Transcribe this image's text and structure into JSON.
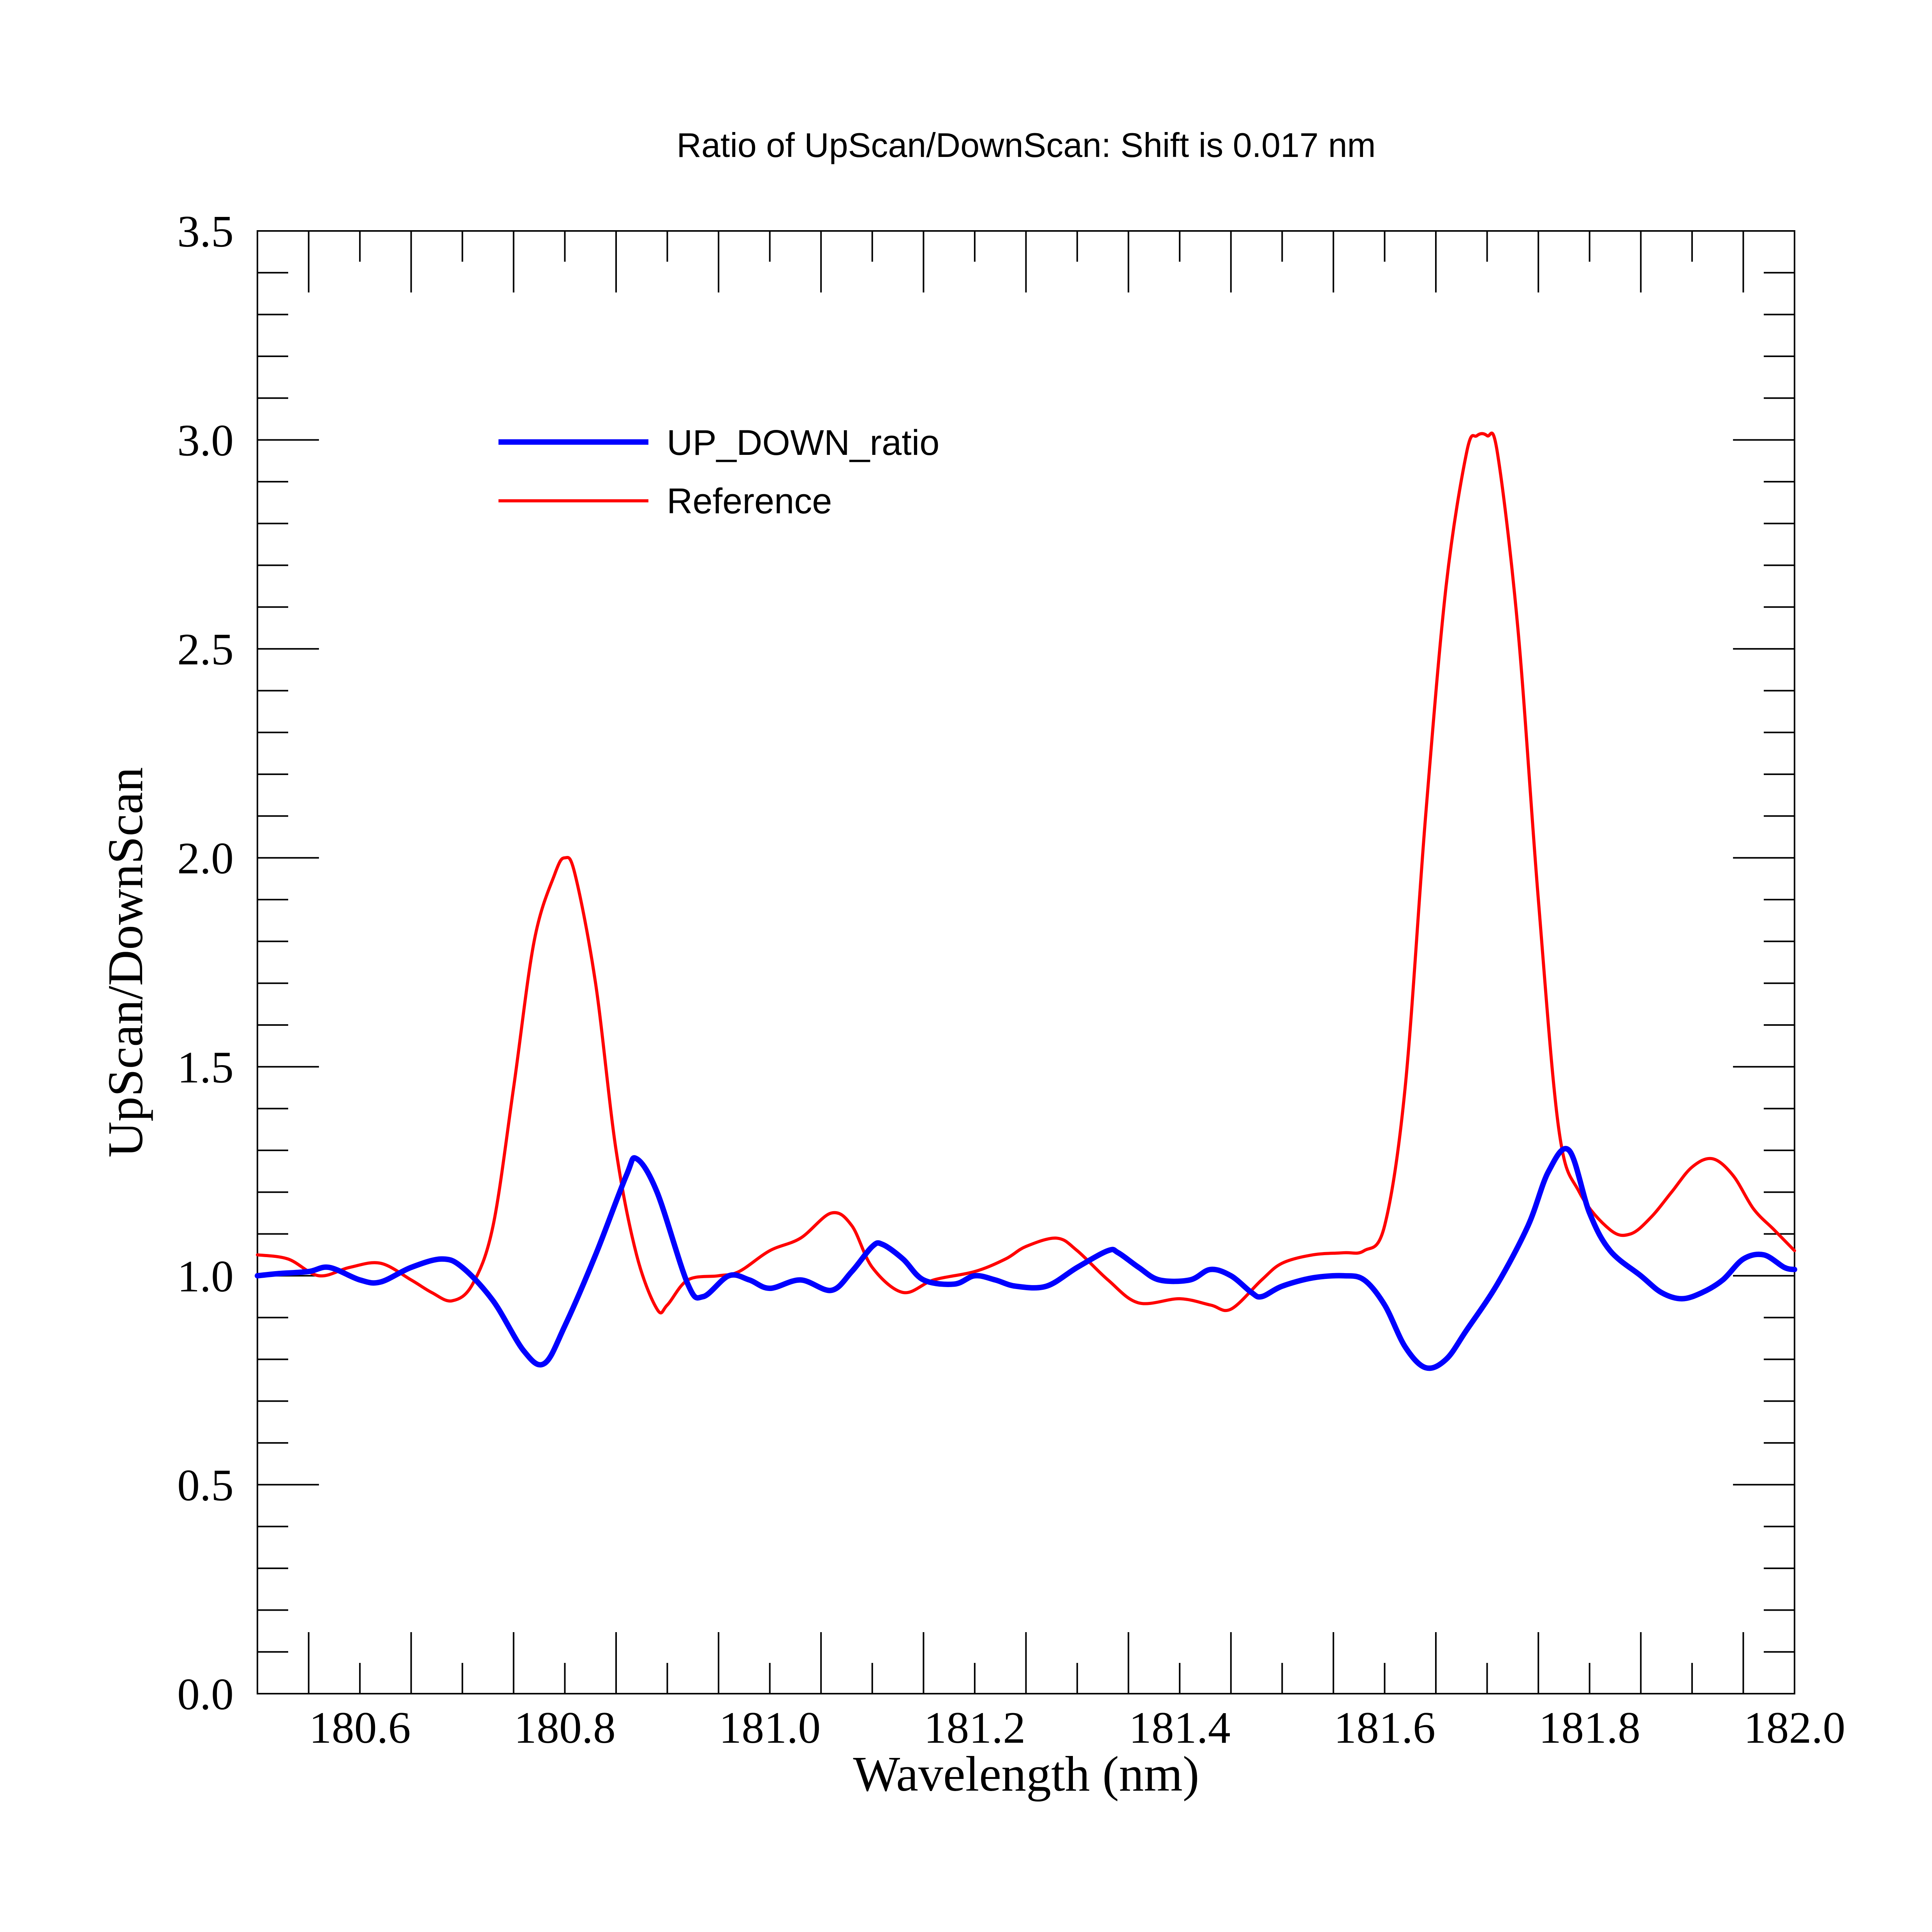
{
  "chart_data": {
    "type": "line",
    "title": "Ratio of UpScan/DownScan: Shift is 0.017 nm",
    "xlabel": "Wavelength (nm)",
    "ylabel": "UpScan/DownScan",
    "xlim": [
      180.5,
      182.0
    ],
    "ylim": [
      0.0,
      3.5
    ],
    "x_ticks": [
      "180.6",
      "180.8",
      "181.0",
      "181.2",
      "181.4",
      "181.6",
      "181.8",
      "182.0"
    ],
    "y_ticks": [
      "0.0",
      "0.5",
      "1.0",
      "1.5",
      "2.0",
      "2.5",
      "3.0",
      "3.5"
    ],
    "grid": false,
    "legend_position": "upper-left",
    "series": [
      {
        "name": "UP_DOWN_ratio",
        "color": "#0000ff",
        "x": [
          180.5,
          180.52,
          180.55,
          180.57,
          180.6,
          180.62,
          180.65,
          180.68,
          180.7,
          180.73,
          180.76,
          180.78,
          180.8,
          180.83,
          180.86,
          180.87,
          180.89,
          180.92,
          180.935,
          180.96,
          180.98,
          181.0,
          181.03,
          181.06,
          181.08,
          181.1,
          181.11,
          181.13,
          181.15,
          181.18,
          181.2,
          181.22,
          181.24,
          181.27,
          181.3,
          181.33,
          181.34,
          181.36,
          181.38,
          181.41,
          181.43,
          181.45,
          181.47,
          181.48,
          181.5,
          181.53,
          181.56,
          181.58,
          181.6,
          181.62,
          181.64,
          181.66,
          181.68,
          181.71,
          181.74,
          181.76,
          181.78,
          181.8,
          181.82,
          181.85,
          181.87,
          181.89,
          181.91,
          181.93,
          181.95,
          181.97,
          181.99,
          182.0
        ],
        "y": [
          1.0,
          1.005,
          1.01,
          1.02,
          0.99,
          0.985,
          1.02,
          1.04,
          1.02,
          0.94,
          0.82,
          0.79,
          0.88,
          1.05,
          1.24,
          1.28,
          1.2,
          0.98,
          0.95,
          1.0,
          0.99,
          0.97,
          0.99,
          0.965,
          1.01,
          1.07,
          1.075,
          1.04,
          0.99,
          0.98,
          1.0,
          0.99,
          0.975,
          0.975,
          1.02,
          1.06,
          1.055,
          1.02,
          0.99,
          0.99,
          1.015,
          1.0,
          0.96,
          0.95,
          0.975,
          0.995,
          1.0,
          0.99,
          0.93,
          0.83,
          0.78,
          0.8,
          0.87,
          0.98,
          1.12,
          1.25,
          1.3,
          1.15,
          1.06,
          1.0,
          0.96,
          0.945,
          0.96,
          0.99,
          1.04,
          1.05,
          1.02,
          1.015
        ]
      },
      {
        "name": "Reference",
        "color": "#ff0000",
        "x": [
          180.5,
          180.53,
          180.56,
          180.59,
          180.62,
          180.65,
          180.67,
          180.69,
          180.71,
          180.73,
          180.75,
          180.77,
          180.79,
          180.8,
          180.81,
          180.83,
          180.85,
          180.87,
          180.89,
          180.9,
          180.92,
          180.95,
          180.97,
          181.0,
          181.03,
          181.06,
          181.08,
          181.1,
          181.13,
          181.16,
          181.2,
          181.23,
          181.25,
          181.28,
          181.3,
          181.33,
          181.36,
          181.4,
          181.43,
          181.45,
          181.48,
          181.5,
          181.53,
          181.56,
          181.58,
          181.6,
          181.62,
          181.64,
          181.66,
          181.68,
          181.69,
          181.7,
          181.71,
          181.73,
          181.75,
          181.77,
          181.79,
          181.82,
          181.84,
          181.86,
          181.88,
          181.9,
          181.92,
          181.94,
          181.96,
          181.98,
          182.0
        ],
        "y": [
          1.05,
          1.04,
          1.0,
          1.02,
          1.03,
          0.99,
          0.96,
          0.94,
          0.98,
          1.12,
          1.45,
          1.8,
          1.96,
          2.0,
          1.96,
          1.7,
          1.3,
          1.05,
          0.92,
          0.93,
          0.99,
          1.0,
          1.01,
          1.06,
          1.09,
          1.15,
          1.12,
          1.02,
          0.96,
          0.99,
          1.01,
          1.04,
          1.07,
          1.09,
          1.06,
          0.99,
          0.935,
          0.945,
          0.93,
          0.92,
          0.99,
          1.03,
          1.05,
          1.055,
          1.06,
          1.12,
          1.45,
          2.1,
          2.65,
          2.97,
          3.01,
          3.01,
          2.97,
          2.55,
          1.9,
          1.35,
          1.2,
          1.11,
          1.1,
          1.14,
          1.2,
          1.26,
          1.28,
          1.24,
          1.16,
          1.11,
          1.06
        ]
      }
    ]
  }
}
